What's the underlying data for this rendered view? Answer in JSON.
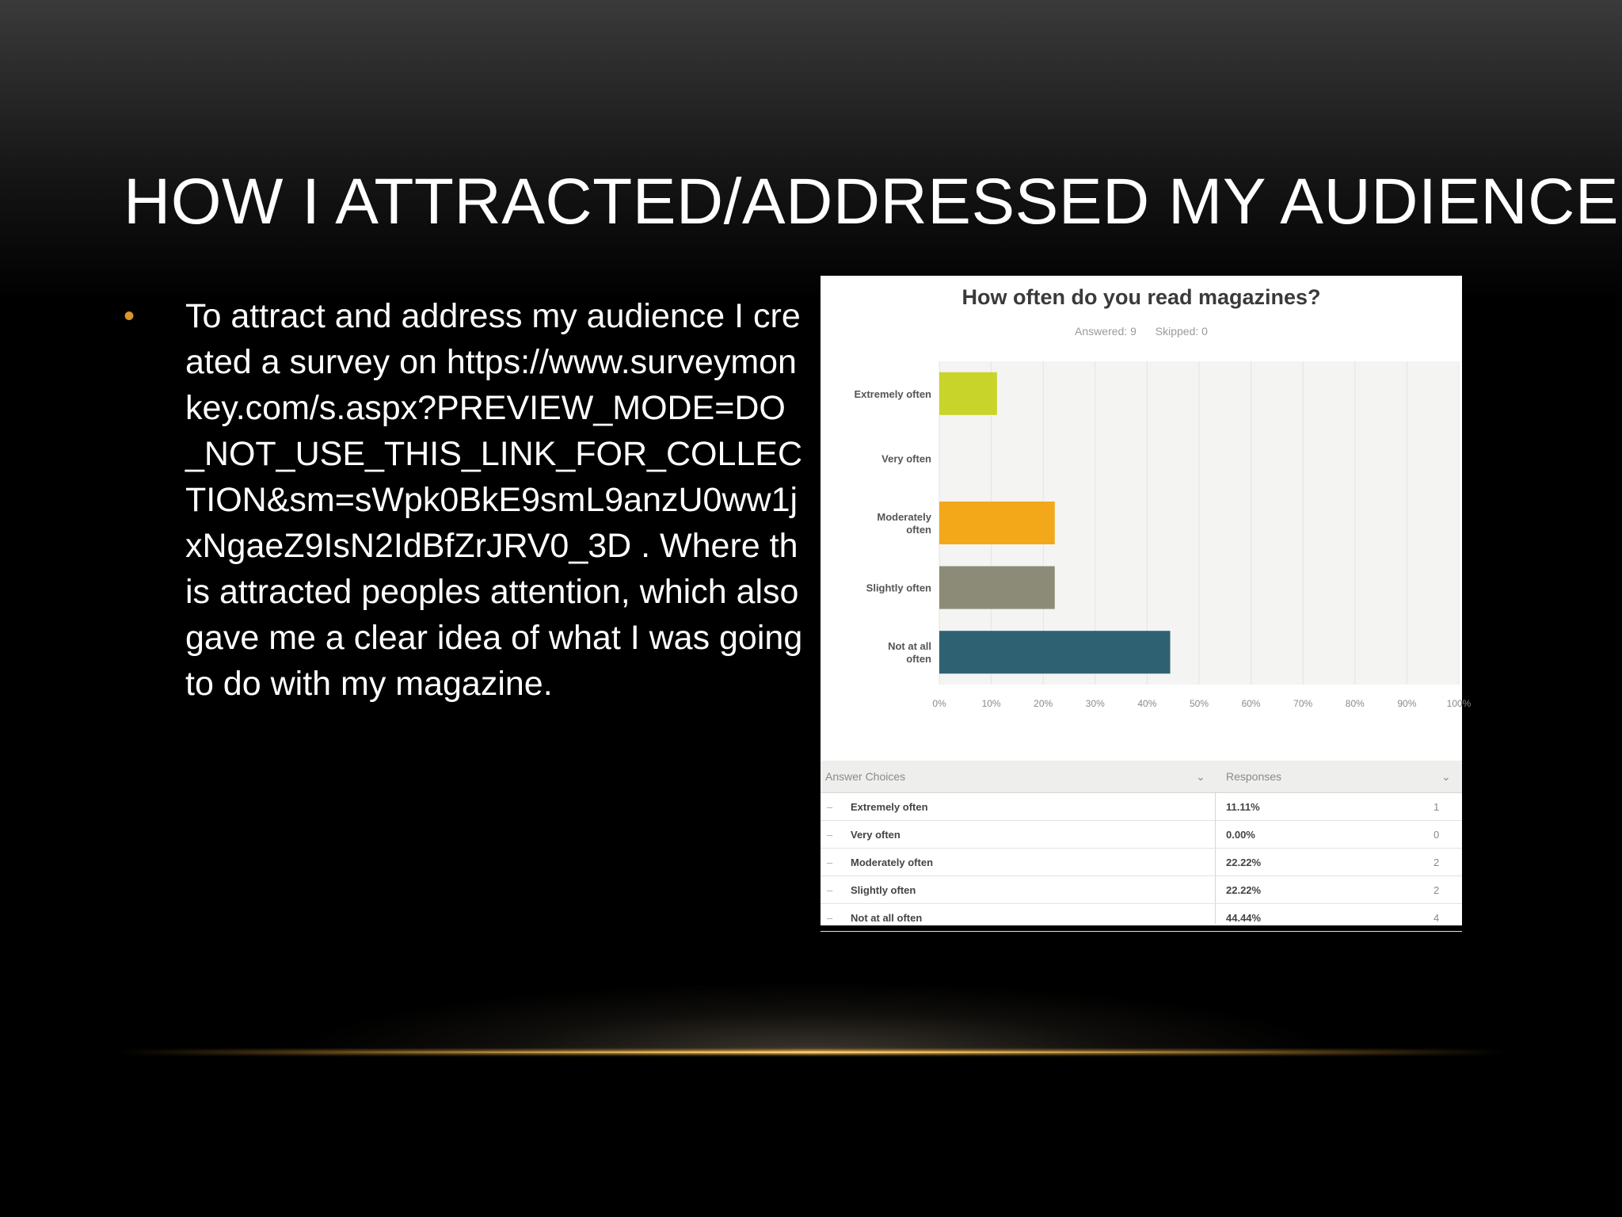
{
  "slide": {
    "title": "HOW I ATTRACTED/ADDRESSED MY AUDIENCE",
    "bullet_symbol": "•",
    "bullet_text": "To attract and address my audience I created a survey on https://www.surveymonkey.com/s.aspx?PREVIEW_MODE=DO_NOT_USE_THIS_LINK_FOR_COLLECTION&sm=sWpk0BkE9smL9anzU0ww1jxNgaeZ9IsN2IdBfZrJRV0_3D . Where this attracted peoples attention, which also gave me a clear idea of what I was going to do with my magazine.",
    "accent_color": "#d9952b"
  },
  "survey": {
    "question": "How often do you read magazines?",
    "answered": "Answered: 9",
    "skipped": "Skipped: 0",
    "table_headers": {
      "answer": "Answer Choices",
      "responses": "Responses"
    },
    "rows": [
      {
        "choice": "Extremely often",
        "percent": "11.11%",
        "count": "1"
      },
      {
        "choice": "Very often",
        "percent": "0.00%",
        "count": "0"
      },
      {
        "choice": "Moderately often",
        "percent": "22.22%",
        "count": "2"
      },
      {
        "choice": "Slightly often",
        "percent": "22.22%",
        "count": "2"
      },
      {
        "choice": "Not at all often",
        "percent": "44.44%",
        "count": "4"
      }
    ]
  },
  "chart_data": {
    "type": "bar",
    "orientation": "horizontal",
    "title": "How often do you read magazines?",
    "categories": [
      [
        "Extremely often"
      ],
      [
        "Very often"
      ],
      [
        "Moderately",
        "often"
      ],
      [
        "Slightly often"
      ],
      [
        "Not at all",
        "often"
      ]
    ],
    "values": [
      11.11,
      0.0,
      22.22,
      22.22,
      44.44
    ],
    "colors": [
      "#c8d42a",
      "#b0b0b0",
      "#f2a818",
      "#8b8b78",
      "#2e6273"
    ],
    "xlim": [
      0,
      100
    ],
    "xticks": [
      "0%",
      "10%",
      "20%",
      "30%",
      "40%",
      "50%",
      "60%",
      "70%",
      "80%",
      "90%",
      "100%"
    ],
    "grid": true
  }
}
